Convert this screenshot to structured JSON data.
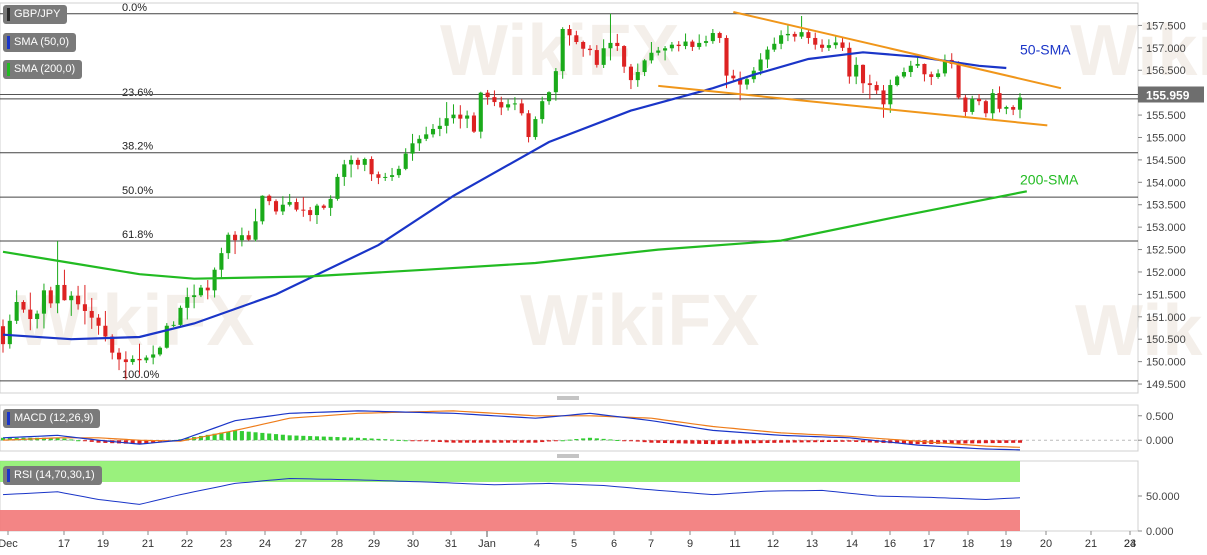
{
  "chart_data": {
    "type": "candlestick",
    "instrument": "GBP/JPY",
    "price_axis": {
      "ylim": [
        149.3,
        158.0
      ],
      "ticks": [
        157.5,
        157.0,
        156.5,
        156.0,
        155.5,
        155.0,
        154.5,
        154.0,
        153.5,
        153.0,
        152.5,
        152.0,
        151.5,
        151.0,
        150.5,
        150.0,
        149.5
      ],
      "tick_labels": [
        "157.500",
        "157.000",
        "156.500",
        "156.000",
        "155.500",
        "155.000",
        "154.500",
        "154.000",
        "153.500",
        "153.000",
        "152.500",
        "152.000",
        "151.500",
        "151.000",
        "150.500",
        "150.000",
        "149.500"
      ],
      "current_price": 155.959,
      "current_price_label": "155.959",
      "colors": {
        "up": "#1aaa1a",
        "down": "#dd2222",
        "current_price_box": "#6e6e6e"
      }
    },
    "x_axis": {
      "labels": [
        "Dec",
        "17",
        "19",
        "21",
        "22",
        "23",
        "24",
        "27",
        "28",
        "29",
        "30",
        "31",
        "Jan",
        "4",
        "5",
        "6",
        "7",
        "9",
        "11",
        "12",
        "13",
        "14",
        "16",
        "17",
        "18",
        "19",
        "20",
        "21",
        "23",
        "24"
      ],
      "num_bars": 150
    },
    "candles": [
      [
        150.79,
        150.94,
        150.2,
        150.39
      ],
      [
        150.39,
        151.05,
        150.29,
        150.91
      ],
      [
        150.91,
        151.59,
        150.84,
        151.33
      ],
      [
        151.33,
        151.37,
        151.09,
        151.16
      ],
      [
        151.16,
        151.54,
        150.7,
        150.95
      ],
      [
        150.95,
        151.14,
        150.74,
        151.07
      ],
      [
        151.07,
        151.74,
        150.74,
        151.59
      ],
      [
        151.59,
        151.67,
        151.2,
        151.3
      ],
      [
        151.3,
        152.69,
        151.08,
        151.71
      ],
      [
        151.71,
        152.05,
        151.36,
        151.37
      ],
      [
        151.37,
        151.57,
        151.02,
        151.47
      ],
      [
        151.47,
        151.69,
        151.16,
        151.28
      ],
      [
        151.28,
        151.71,
        150.83,
        151.13
      ],
      [
        151.13,
        151.42,
        150.73,
        150.98
      ],
      [
        150.98,
        151.06,
        150.6,
        150.8
      ],
      [
        150.8,
        151.13,
        150.45,
        150.56
      ],
      [
        150.56,
        150.61,
        150.05,
        150.2
      ],
      [
        150.2,
        150.3,
        149.81,
        150.05
      ],
      [
        150.05,
        150.23,
        149.6,
        149.99
      ],
      [
        149.99,
        150.14,
        149.93,
        150.06
      ],
      [
        150.06,
        150.4,
        149.71,
        150.03
      ],
      [
        150.03,
        150.14,
        149.97,
        150.09
      ],
      [
        150.09,
        150.36,
        149.94,
        150.16
      ],
      [
        150.16,
        150.34,
        150.12,
        150.31
      ],
      [
        150.31,
        150.86,
        150.29,
        150.8
      ],
      [
        150.8,
        150.9,
        150.77,
        150.82
      ],
      [
        150.82,
        151.25,
        150.76,
        151.2
      ],
      [
        151.2,
        151.65,
        150.94,
        151.44
      ],
      [
        151.44,
        151.72,
        151.19,
        151.48
      ],
      [
        151.48,
        151.71,
        151.44,
        151.65
      ],
      [
        151.65,
        151.82,
        151.39,
        151.59
      ],
      [
        151.59,
        152.1,
        151.43,
        152.05
      ],
      [
        152.05,
        152.54,
        151.88,
        152.42
      ],
      [
        152.42,
        152.88,
        152.29,
        152.83
      ],
      [
        152.83,
        152.91,
        152.4,
        152.71
      ],
      [
        152.71,
        152.99,
        152.57,
        152.82
      ],
      [
        152.82,
        152.92,
        152.7,
        152.72
      ],
      [
        152.72,
        153.41,
        152.68,
        153.13
      ],
      [
        153.13,
        153.71,
        153.06,
        153.7
      ],
      [
        153.7,
        153.73,
        153.49,
        153.58
      ],
      [
        153.58,
        153.62,
        153.28,
        153.35
      ],
      [
        153.35,
        153.69,
        153.27,
        153.5
      ],
      [
        153.5,
        153.74,
        153.46,
        153.56
      ],
      [
        153.56,
        153.64,
        153.35,
        153.39
      ],
      [
        153.39,
        153.67,
        153.23,
        153.38
      ],
      [
        153.38,
        153.45,
        153.13,
        153.27
      ],
      [
        153.27,
        153.52,
        153.07,
        153.48
      ],
      [
        153.48,
        153.51,
        153.39,
        153.43
      ],
      [
        153.43,
        153.71,
        153.25,
        153.63
      ],
      [
        153.63,
        154.19,
        153.59,
        154.12
      ],
      [
        154.12,
        154.5,
        153.92,
        154.4
      ],
      [
        154.4,
        154.6,
        154.11,
        154.5
      ],
      [
        154.5,
        154.55,
        154.29,
        154.39
      ],
      [
        154.39,
        154.55,
        154.25,
        154.52
      ],
      [
        154.52,
        154.58,
        154.03,
        154.18
      ],
      [
        154.18,
        154.24,
        153.96,
        154.1
      ],
      [
        154.1,
        154.21,
        154.03,
        154.12
      ],
      [
        154.12,
        154.32,
        154.03,
        154.16
      ],
      [
        154.16,
        154.37,
        154.1,
        154.3
      ],
      [
        154.3,
        154.76,
        154.27,
        154.64
      ],
      [
        154.64,
        155.08,
        154.48,
        154.87
      ],
      [
        154.87,
        155.05,
        154.7,
        154.97
      ],
      [
        154.97,
        155.24,
        154.92,
        155.07
      ],
      [
        155.07,
        155.3,
        155.0,
        155.19
      ],
      [
        155.19,
        155.44,
        155.03,
        155.26
      ],
      [
        155.26,
        155.79,
        155.09,
        155.43
      ],
      [
        155.43,
        155.74,
        155.31,
        155.51
      ],
      [
        155.51,
        155.72,
        155.2,
        155.42
      ],
      [
        155.42,
        155.6,
        155.21,
        155.49
      ],
      [
        155.49,
        155.56,
        155.1,
        155.13
      ],
      [
        155.13,
        156.02,
        154.98,
        156.0
      ],
      [
        156.0,
        156.06,
        155.73,
        155.9
      ],
      [
        155.9,
        156.05,
        155.7,
        155.79
      ],
      [
        155.79,
        155.91,
        155.5,
        155.67
      ],
      [
        155.67,
        155.85,
        155.6,
        155.74
      ],
      [
        155.74,
        155.9,
        155.61,
        155.76
      ],
      [
        155.76,
        155.85,
        155.49,
        155.54
      ],
      [
        155.54,
        155.61,
        154.89,
        155.01
      ],
      [
        155.01,
        155.47,
        154.95,
        155.41
      ],
      [
        155.41,
        155.91,
        155.31,
        155.81
      ],
      [
        155.81,
        156.03,
        155.73,
        156.01
      ],
      [
        156.01,
        156.55,
        155.82,
        156.48
      ],
      [
        156.48,
        157.46,
        156.31,
        157.42
      ],
      [
        157.42,
        157.51,
        157.05,
        157.28
      ],
      [
        157.28,
        157.38,
        157.08,
        157.13
      ],
      [
        157.13,
        157.16,
        156.8,
        156.98
      ],
      [
        156.98,
        157.06,
        156.83,
        156.95
      ],
      [
        156.95,
        157.06,
        156.56,
        156.62
      ],
      [
        156.62,
        157.19,
        156.55,
        156.99
      ],
      [
        156.99,
        157.76,
        156.72,
        157.11
      ],
      [
        157.11,
        157.31,
        156.93,
        157.04
      ],
      [
        157.04,
        157.06,
        156.44,
        156.58
      ],
      [
        156.58,
        156.64,
        156.08,
        156.28
      ],
      [
        156.28,
        156.65,
        156.13,
        156.46
      ],
      [
        156.46,
        156.75,
        156.37,
        156.72
      ],
      [
        156.72,
        157.13,
        156.65,
        156.89
      ],
      [
        156.89,
        157.02,
        156.83,
        156.94
      ],
      [
        156.94,
        157.04,
        156.72,
        156.99
      ],
      [
        156.99,
        157.13,
        156.92,
        157.07
      ],
      [
        157.07,
        157.15,
        156.92,
        157.04
      ],
      [
        157.04,
        157.32,
        156.97,
        157.14
      ],
      [
        157.14,
        157.18,
        156.93,
        157.02
      ],
      [
        157.02,
        157.3,
        156.96,
        157.11
      ],
      [
        157.11,
        157.27,
        157.03,
        157.15
      ],
      [
        157.15,
        157.42,
        157.09,
        157.33
      ],
      [
        157.33,
        157.36,
        157.11,
        157.22
      ],
      [
        157.22,
        157.28,
        156.1,
        156.38
      ],
      [
        156.38,
        156.51,
        156.23,
        156.32
      ],
      [
        156.32,
        156.47,
        155.83,
        156.18
      ],
      [
        156.18,
        156.37,
        156.07,
        156.3
      ],
      [
        156.3,
        156.57,
        156.22,
        156.49
      ],
      [
        156.49,
        156.88,
        156.39,
        156.74
      ],
      [
        156.74,
        157.03,
        156.55,
        156.96
      ],
      [
        156.96,
        157.23,
        156.91,
        157.09
      ],
      [
        157.09,
        157.39,
        156.97,
        157.28
      ],
      [
        157.28,
        157.51,
        157.15,
        157.31
      ],
      [
        157.31,
        157.36,
        157.14,
        157.25
      ],
      [
        157.25,
        157.71,
        157.2,
        157.35
      ],
      [
        157.35,
        157.4,
        157.09,
        157.22
      ],
      [
        157.22,
        157.34,
        156.96,
        157.07
      ],
      [
        157.07,
        157.19,
        156.91,
        157.0
      ],
      [
        157.0,
        157.19,
        156.93,
        157.06
      ],
      [
        157.06,
        157.28,
        156.98,
        157.12
      ],
      [
        157.12,
        157.25,
        156.93,
        157.0
      ],
      [
        157.0,
        157.12,
        156.2,
        156.36
      ],
      [
        156.36,
        156.79,
        156.19,
        156.62
      ],
      [
        156.62,
        156.63,
        155.99,
        156.21
      ],
      [
        156.21,
        156.4,
        155.86,
        156.17
      ],
      [
        156.17,
        156.25,
        155.97,
        156.05
      ],
      [
        156.05,
        156.17,
        155.44,
        155.74
      ],
      [
        155.74,
        156.29,
        155.55,
        156.17
      ],
      [
        156.17,
        156.39,
        156.14,
        156.36
      ],
      [
        156.36,
        156.56,
        156.32,
        156.46
      ],
      [
        156.46,
        156.71,
        156.35,
        156.6
      ],
      [
        156.6,
        156.84,
        156.55,
        156.64
      ],
      [
        156.64,
        156.65,
        156.25,
        156.41
      ],
      [
        156.41,
        156.47,
        156.17,
        156.35
      ],
      [
        156.35,
        156.52,
        156.31,
        156.43
      ],
      [
        156.43,
        156.85,
        156.36,
        156.73
      ],
      [
        156.73,
        156.88,
        156.54,
        156.64
      ],
      [
        156.64,
        156.7,
        155.86,
        155.89
      ],
      [
        155.89,
        155.95,
        155.45,
        155.57
      ],
      [
        155.57,
        155.93,
        155.51,
        155.86
      ],
      [
        155.86,
        155.97,
        155.72,
        155.81
      ],
      [
        155.81,
        155.84,
        155.45,
        155.54
      ],
      [
        155.54,
        156.08,
        155.41,
        155.99
      ],
      [
        155.99,
        156.14,
        155.56,
        155.64
      ],
      [
        155.64,
        155.71,
        155.52,
        155.68
      ],
      [
        155.68,
        155.72,
        155.5,
        155.62
      ],
      [
        155.62,
        155.99,
        155.43,
        155.89
      ]
    ],
    "sma": [
      {
        "name": "SMA (50,0)",
        "label": "50-SMA",
        "color": "#1a35c8",
        "points": [
          [
            0,
            150.6
          ],
          [
            10,
            150.5
          ],
          [
            20,
            150.55
          ],
          [
            28,
            150.85
          ],
          [
            40,
            151.5
          ],
          [
            55,
            152.6
          ],
          [
            66,
            153.7
          ],
          [
            80,
            154.9
          ],
          [
            92,
            155.6
          ],
          [
            104,
            156.1
          ],
          [
            110,
            156.4
          ],
          [
            118,
            156.75
          ],
          [
            126,
            156.9
          ],
          [
            134,
            156.8
          ],
          [
            143,
            156.6
          ],
          [
            147,
            156.55
          ]
        ]
      },
      {
        "name": "SMA (200,0)",
        "label": "200-SMA",
        "color": "#22bb22",
        "points": [
          [
            0,
            152.45
          ],
          [
            10,
            152.2
          ],
          [
            20,
            151.95
          ],
          [
            28,
            151.85
          ],
          [
            45,
            151.9
          ],
          [
            62,
            152.05
          ],
          [
            78,
            152.2
          ],
          [
            96,
            152.5
          ],
          [
            114,
            152.7
          ],
          [
            130,
            153.2
          ],
          [
            150,
            153.8
          ]
        ]
      }
    ],
    "trendlines": [
      {
        "points": [
          [
            107,
            157.8
          ],
          [
            155,
            156.1
          ]
        ],
        "color": "#f0961a"
      },
      {
        "points": [
          [
            96,
            156.15
          ],
          [
            153,
            155.27
          ]
        ],
        "color": "#f0961a"
      }
    ],
    "fibonacci": [
      {
        "label": "0.0%",
        "price": 157.76
      },
      {
        "label": "23.6%",
        "price": 155.86
      },
      {
        "label": "38.2%",
        "price": 154.66
      },
      {
        "label": "50.0%",
        "price": 153.67
      },
      {
        "label": "61.8%",
        "price": 152.69
      },
      {
        "label": "100.0%",
        "price": 149.57
      }
    ],
    "macd": {
      "legend": "MACD (12,26,9)",
      "ylim": [
        -0.22,
        0.72
      ],
      "ticks": [
        0.5,
        0.0
      ],
      "tick_labels": [
        "0.500",
        "0.000"
      ],
      "macd_points": [
        [
          0,
          0.05
        ],
        [
          8,
          0.1
        ],
        [
          14,
          0.0
        ],
        [
          20,
          -0.08
        ],
        [
          26,
          0.0
        ],
        [
          34,
          0.4
        ],
        [
          42,
          0.55
        ],
        [
          52,
          0.6
        ],
        [
          66,
          0.55
        ],
        [
          78,
          0.45
        ],
        [
          86,
          0.55
        ],
        [
          95,
          0.4
        ],
        [
          104,
          0.2
        ],
        [
          114,
          0.1
        ],
        [
          124,
          0.05
        ],
        [
          134,
          -0.1
        ],
        [
          144,
          -0.18
        ],
        [
          150,
          -0.2
        ]
      ],
      "signal_points": [
        [
          0,
          0.0
        ],
        [
          8,
          0.05
        ],
        [
          14,
          0.05
        ],
        [
          20,
          0.0
        ],
        [
          26,
          -0.02
        ],
        [
          34,
          0.2
        ],
        [
          42,
          0.45
        ],
        [
          52,
          0.55
        ],
        [
          66,
          0.6
        ],
        [
          78,
          0.5
        ],
        [
          86,
          0.5
        ],
        [
          95,
          0.45
        ],
        [
          104,
          0.28
        ],
        [
          114,
          0.15
        ],
        [
          124,
          0.08
        ],
        [
          134,
          -0.02
        ],
        [
          144,
          -0.12
        ],
        [
          150,
          -0.15
        ]
      ],
      "macd_color": "#1a35c8",
      "signal_color": "#ee7c1a"
    },
    "rsi": {
      "legend": "RSI (14,70,30,1)",
      "ylim": [
        0,
        100
      ],
      "ticks": [
        50,
        0
      ],
      "tick_labels": [
        "50.000",
        "0.000"
      ],
      "overbought": 70,
      "oversold": 30,
      "points": [
        [
          0,
          52
        ],
        [
          8,
          56
        ],
        [
          14,
          45
        ],
        [
          20,
          38
        ],
        [
          26,
          52
        ],
        [
          34,
          68
        ],
        [
          42,
          75
        ],
        [
          52,
          73
        ],
        [
          62,
          70
        ],
        [
          72,
          66
        ],
        [
          80,
          68
        ],
        [
          88,
          65
        ],
        [
          96,
          58
        ],
        [
          104,
          52
        ],
        [
          112,
          57
        ],
        [
          120,
          58
        ],
        [
          128,
          50
        ],
        [
          136,
          48
        ],
        [
          144,
          45
        ],
        [
          150,
          48
        ]
      ],
      "color": "#1a35c8",
      "ob_fill": "#88ee66",
      "os_fill": "#f27878"
    },
    "watermark": "WikiFX"
  }
}
